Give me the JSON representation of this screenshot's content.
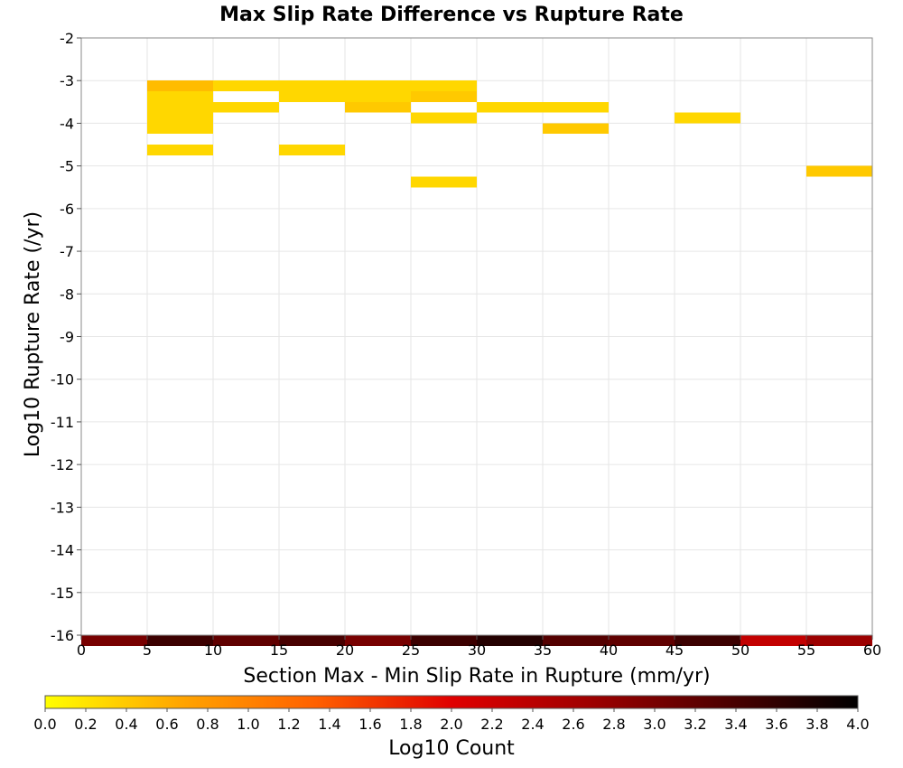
{
  "chart_data": {
    "type": "heatmap",
    "title": "Max Slip Rate Difference vs Rupture Rate",
    "xlabel": "Section Max - Min Slip Rate in Rupture (mm/yr)",
    "ylabel": "Log10 Rupture Rate (/yr)",
    "xlim": [
      0,
      60
    ],
    "ylim": [
      -16,
      -2
    ],
    "x_ticks": [
      "0",
      "5",
      "10",
      "15",
      "20",
      "25",
      "30",
      "35",
      "40",
      "45",
      "50",
      "55",
      "60"
    ],
    "y_ticks": [
      "-2",
      "-3",
      "-4",
      "-5",
      "-6",
      "-7",
      "-8",
      "-9",
      "-10",
      "-11",
      "-12",
      "-13",
      "-14",
      "-15",
      "-16"
    ],
    "grid": true,
    "bin_width_x": 5,
    "bin_height_y": 0.25,
    "colorbar": {
      "label": "Log10 Count",
      "range": [
        0,
        4
      ],
      "ticks": [
        "0.0",
        "0.2",
        "0.4",
        "0.6",
        "0.8",
        "1.0",
        "1.2",
        "1.4",
        "1.6",
        "1.8",
        "2.0",
        "2.2",
        "2.4",
        "2.6",
        "2.8",
        "3.0",
        "3.2",
        "3.4",
        "3.6",
        "3.8",
        "4.0"
      ],
      "colors": [
        "#ffff00",
        "#ffa500",
        "#ff6000",
        "#e00000",
        "#a00000",
        "#500000",
        "#000000"
      ]
    },
    "cells": [
      {
        "x": 5,
        "y": -3.0,
        "value": 0.5
      },
      {
        "x": 5,
        "y": -3.25,
        "value": 0.3
      },
      {
        "x": 5,
        "y": -3.5,
        "value": 0.3
      },
      {
        "x": 5,
        "y": -3.75,
        "value": 0.3
      },
      {
        "x": 5,
        "y": -4.0,
        "value": 0.3
      },
      {
        "x": 5,
        "y": -4.5,
        "value": 0.3
      },
      {
        "x": 10,
        "y": -3.0,
        "value": 0.3
      },
      {
        "x": 10,
        "y": -3.5,
        "value": 0.3
      },
      {
        "x": 15,
        "y": -3.0,
        "value": 0.3
      },
      {
        "x": 15,
        "y": -3.25,
        "value": 0.3
      },
      {
        "x": 15,
        "y": -4.5,
        "value": 0.3
      },
      {
        "x": 20,
        "y": -3.0,
        "value": 0.3
      },
      {
        "x": 20,
        "y": -3.25,
        "value": 0.3
      },
      {
        "x": 20,
        "y": -3.5,
        "value": 0.4
      },
      {
        "x": 25,
        "y": -3.0,
        "value": 0.3
      },
      {
        "x": 25,
        "y": -3.25,
        "value": 0.4
      },
      {
        "x": 25,
        "y": -3.75,
        "value": 0.3
      },
      {
        "x": 25,
        "y": -5.25,
        "value": 0.3
      },
      {
        "x": 30,
        "y": -3.5,
        "value": 0.3
      },
      {
        "x": 35,
        "y": -3.5,
        "value": 0.3
      },
      {
        "x": 35,
        "y": -4.0,
        "value": 0.4
      },
      {
        "x": 45,
        "y": -3.75,
        "value": 0.3
      },
      {
        "x": 55,
        "y": -5.0,
        "value": 0.4
      },
      {
        "x": 0,
        "y": -16,
        "value": 3.0
      },
      {
        "x": 5,
        "y": -16,
        "value": 3.5
      },
      {
        "x": 10,
        "y": -16,
        "value": 3.2
      },
      {
        "x": 15,
        "y": -16,
        "value": 3.4
      },
      {
        "x": 20,
        "y": -16,
        "value": 3.0
      },
      {
        "x": 25,
        "y": -16,
        "value": 3.5
      },
      {
        "x": 30,
        "y": -16,
        "value": 3.7
      },
      {
        "x": 35,
        "y": -16,
        "value": 3.3
      },
      {
        "x": 40,
        "y": -16,
        "value": 3.2
      },
      {
        "x": 45,
        "y": -16,
        "value": 3.5
      },
      {
        "x": 50,
        "y": -16,
        "value": 2.3
      },
      {
        "x": 55,
        "y": -16,
        "value": 2.7
      }
    ]
  }
}
